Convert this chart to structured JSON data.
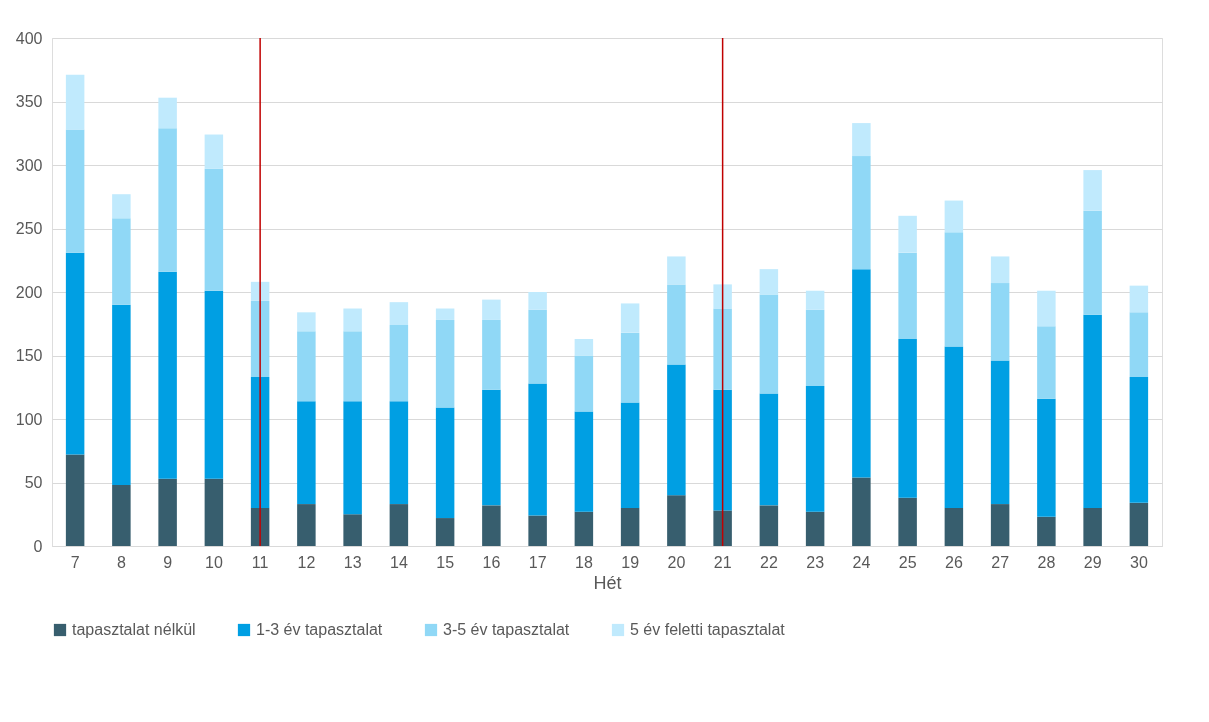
{
  "chart_data": {
    "type": "bar",
    "stacked": true,
    "xlabel": "Hét",
    "categories": [
      "7",
      "8",
      "9",
      "10",
      "11",
      "12",
      "13",
      "14",
      "15",
      "16",
      "17",
      "18",
      "19",
      "20",
      "21",
      "22",
      "23",
      "24",
      "25",
      "26",
      "27",
      "28",
      "29",
      "30"
    ],
    "series": [
      {
        "name": "tapasztalat nélkül",
        "color": "#375e6e",
        "values": [
          72,
          48,
          53,
          53,
          30,
          33,
          25,
          33,
          22,
          32,
          24,
          27,
          30,
          40,
          28,
          32,
          27,
          54,
          38,
          30,
          33,
          23,
          30,
          34
        ]
      },
      {
        "name": "1-3 év tapasztalat",
        "color": "#009fe3",
        "values": [
          159,
          142,
          163,
          148,
          103,
          81,
          89,
          81,
          87,
          91,
          104,
          79,
          83,
          103,
          95,
          88,
          99,
          164,
          125,
          127,
          113,
          93,
          152,
          99
        ]
      },
      {
        "name": "3-5 év tapasztalat",
        "color": "#90d8f6",
        "values": [
          97,
          68,
          113,
          96,
          60,
          55,
          55,
          60,
          69,
          55,
          58,
          44,
          55,
          63,
          64,
          78,
          60,
          89,
          68,
          90,
          61,
          57,
          82,
          51
        ]
      },
      {
        "name": "5 év feletti tapasztalat",
        "color": "#c0eafd",
        "values": [
          43,
          19,
          24,
          27,
          15,
          15,
          18,
          18,
          9,
          16,
          14,
          13,
          23,
          22,
          19,
          20,
          15,
          26,
          29,
          25,
          21,
          28,
          32,
          21
        ]
      }
    ],
    "ylim": [
      0,
      400
    ],
    "yticks": [
      0,
      50,
      100,
      150,
      200,
      250,
      300,
      350,
      400
    ],
    "grid": "y",
    "legend": "bottom",
    "ref_lines": [
      {
        "axis": "x",
        "value": "11",
        "color": "#c00000"
      },
      {
        "axis": "x",
        "value": "21",
        "color": "#c00000"
      }
    ]
  }
}
